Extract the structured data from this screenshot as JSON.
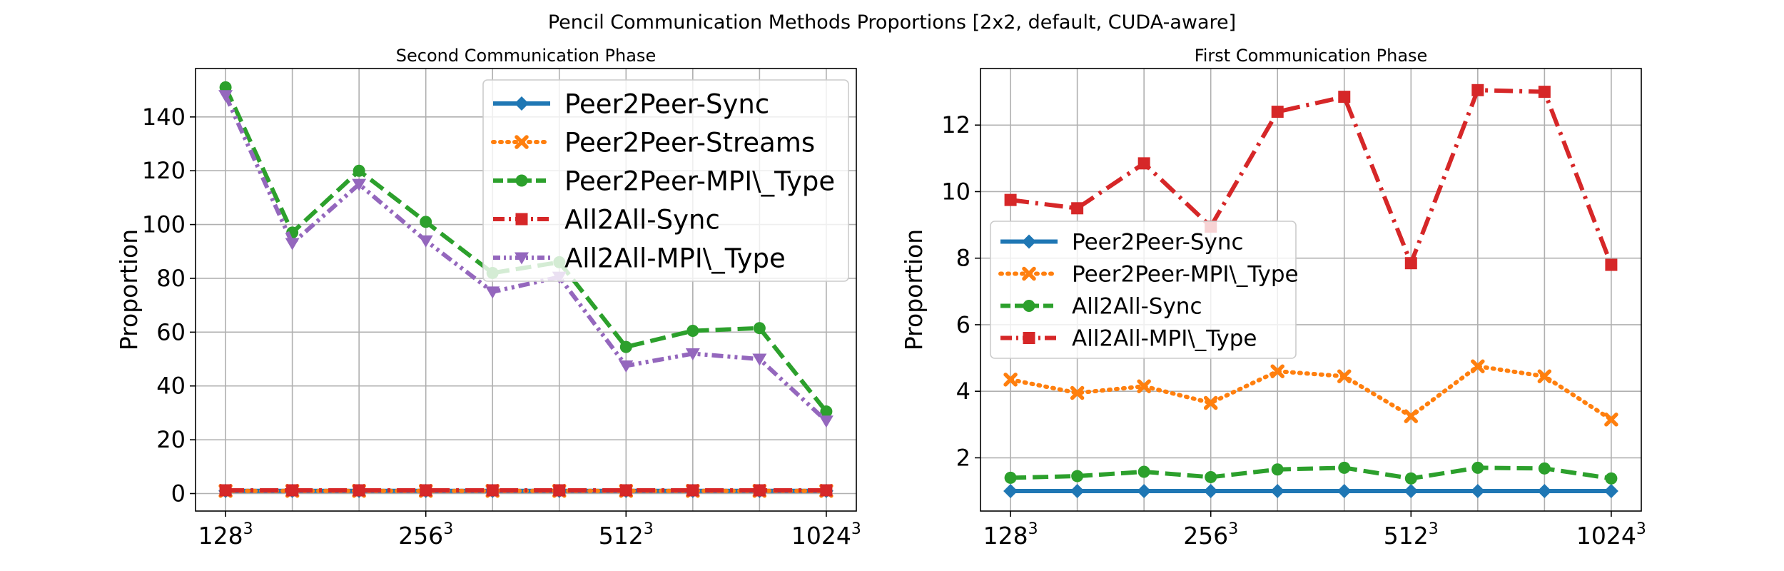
{
  "figure_title": "Pencil Communication Methods Proportions [2x2, default, CUDA-aware]",
  "chart_data": [
    {
      "type": "line",
      "title": "Second Communication Phase",
      "xlabel": "",
      "ylabel": "Proportion",
      "x": [
        1,
        2,
        3,
        4,
        5,
        6,
        7,
        8,
        9,
        10
      ],
      "xtick_positions": [
        1,
        4,
        7,
        10
      ],
      "xtick_labels": [
        {
          "base": "128",
          "sup": "3"
        },
        {
          "base": "256",
          "sup": "3"
        },
        {
          "base": "512",
          "sup": "3"
        },
        {
          "base": "1024",
          "sup": "3"
        }
      ],
      "xlim": [
        0.55,
        10.45
      ],
      "ylim": [
        -6.5,
        158
      ],
      "yticks": [
        0,
        20,
        40,
        60,
        80,
        100,
        120,
        140
      ],
      "grid": true,
      "legend_position": "top-right",
      "series": [
        {
          "name": "Peer2Peer-Sync",
          "color": "#1f77b4",
          "dash": "solid",
          "marker": "diamond",
          "values": [
            1,
            1,
            1,
            1,
            1,
            1,
            1,
            1,
            1,
            1
          ]
        },
        {
          "name": "Peer2Peer-Streams",
          "color": "#ff7f0e",
          "dash": "dotted",
          "marker": "x",
          "values": [
            1,
            1,
            1,
            1,
            1,
            1,
            1,
            1,
            1,
            1
          ]
        },
        {
          "name": "Peer2Peer-MPI\\_Type",
          "color": "#2ca02c",
          "dash": "dashed",
          "marker": "circle",
          "values": [
            151,
            97,
            120,
            101,
            82,
            86,
            54.5,
            60.5,
            61.5,
            30.5
          ]
        },
        {
          "name": "All2All-Sync",
          "color": "#d62728",
          "dash": "dashdot",
          "marker": "square",
          "values": [
            1.2,
            1.2,
            1.2,
            1.2,
            1.2,
            1.2,
            1.2,
            1.2,
            1.2,
            1.2
          ]
        },
        {
          "name": "All2All-MPI\\_Type",
          "color": "#9467bd",
          "dash": "dashdotdot",
          "marker": "triangle-down",
          "values": [
            148,
            93,
            115,
            94,
            75,
            80.5,
            47.5,
            52,
            50,
            27
          ]
        }
      ]
    },
    {
      "type": "line",
      "title": "First Communication Phase",
      "xlabel": "",
      "ylabel": "Proportion",
      "x": [
        1,
        2,
        3,
        4,
        5,
        6,
        7,
        8,
        9,
        10
      ],
      "xtick_positions": [
        1,
        4,
        7,
        10
      ],
      "xtick_labels": [
        {
          "base": "128",
          "sup": "3"
        },
        {
          "base": "256",
          "sup": "3"
        },
        {
          "base": "512",
          "sup": "3"
        },
        {
          "base": "1024",
          "sup": "3"
        }
      ],
      "xlim": [
        0.55,
        10.45
      ],
      "ylim": [
        0.4,
        13.7
      ],
      "yticks": [
        2,
        4,
        6,
        8,
        10,
        12
      ],
      "grid": true,
      "legend_position": "center-left",
      "series": [
        {
          "name": "Peer2Peer-Sync",
          "color": "#1f77b4",
          "dash": "solid",
          "marker": "diamond",
          "values": [
            1,
            1,
            1,
            1,
            1,
            1,
            1,
            1,
            1,
            1
          ]
        },
        {
          "name": "Peer2Peer-MPI\\_Type",
          "color": "#ff7f0e",
          "dash": "dotted",
          "marker": "x",
          "values": [
            4.35,
            3.95,
            4.15,
            3.65,
            4.6,
            4.45,
            3.25,
            4.75,
            4.45,
            3.15
          ]
        },
        {
          "name": "All2All-Sync",
          "color": "#2ca02c",
          "dash": "dashed",
          "marker": "circle",
          "values": [
            1.4,
            1.45,
            1.58,
            1.42,
            1.65,
            1.7,
            1.38,
            1.7,
            1.68,
            1.38
          ]
        },
        {
          "name": "All2All-MPI\\_Type",
          "color": "#d62728",
          "dash": "dashdot",
          "marker": "square",
          "values": [
            9.75,
            9.5,
            10.85,
            8.95,
            12.4,
            12.85,
            7.85,
            13.05,
            13.0,
            7.8
          ]
        }
      ]
    }
  ]
}
